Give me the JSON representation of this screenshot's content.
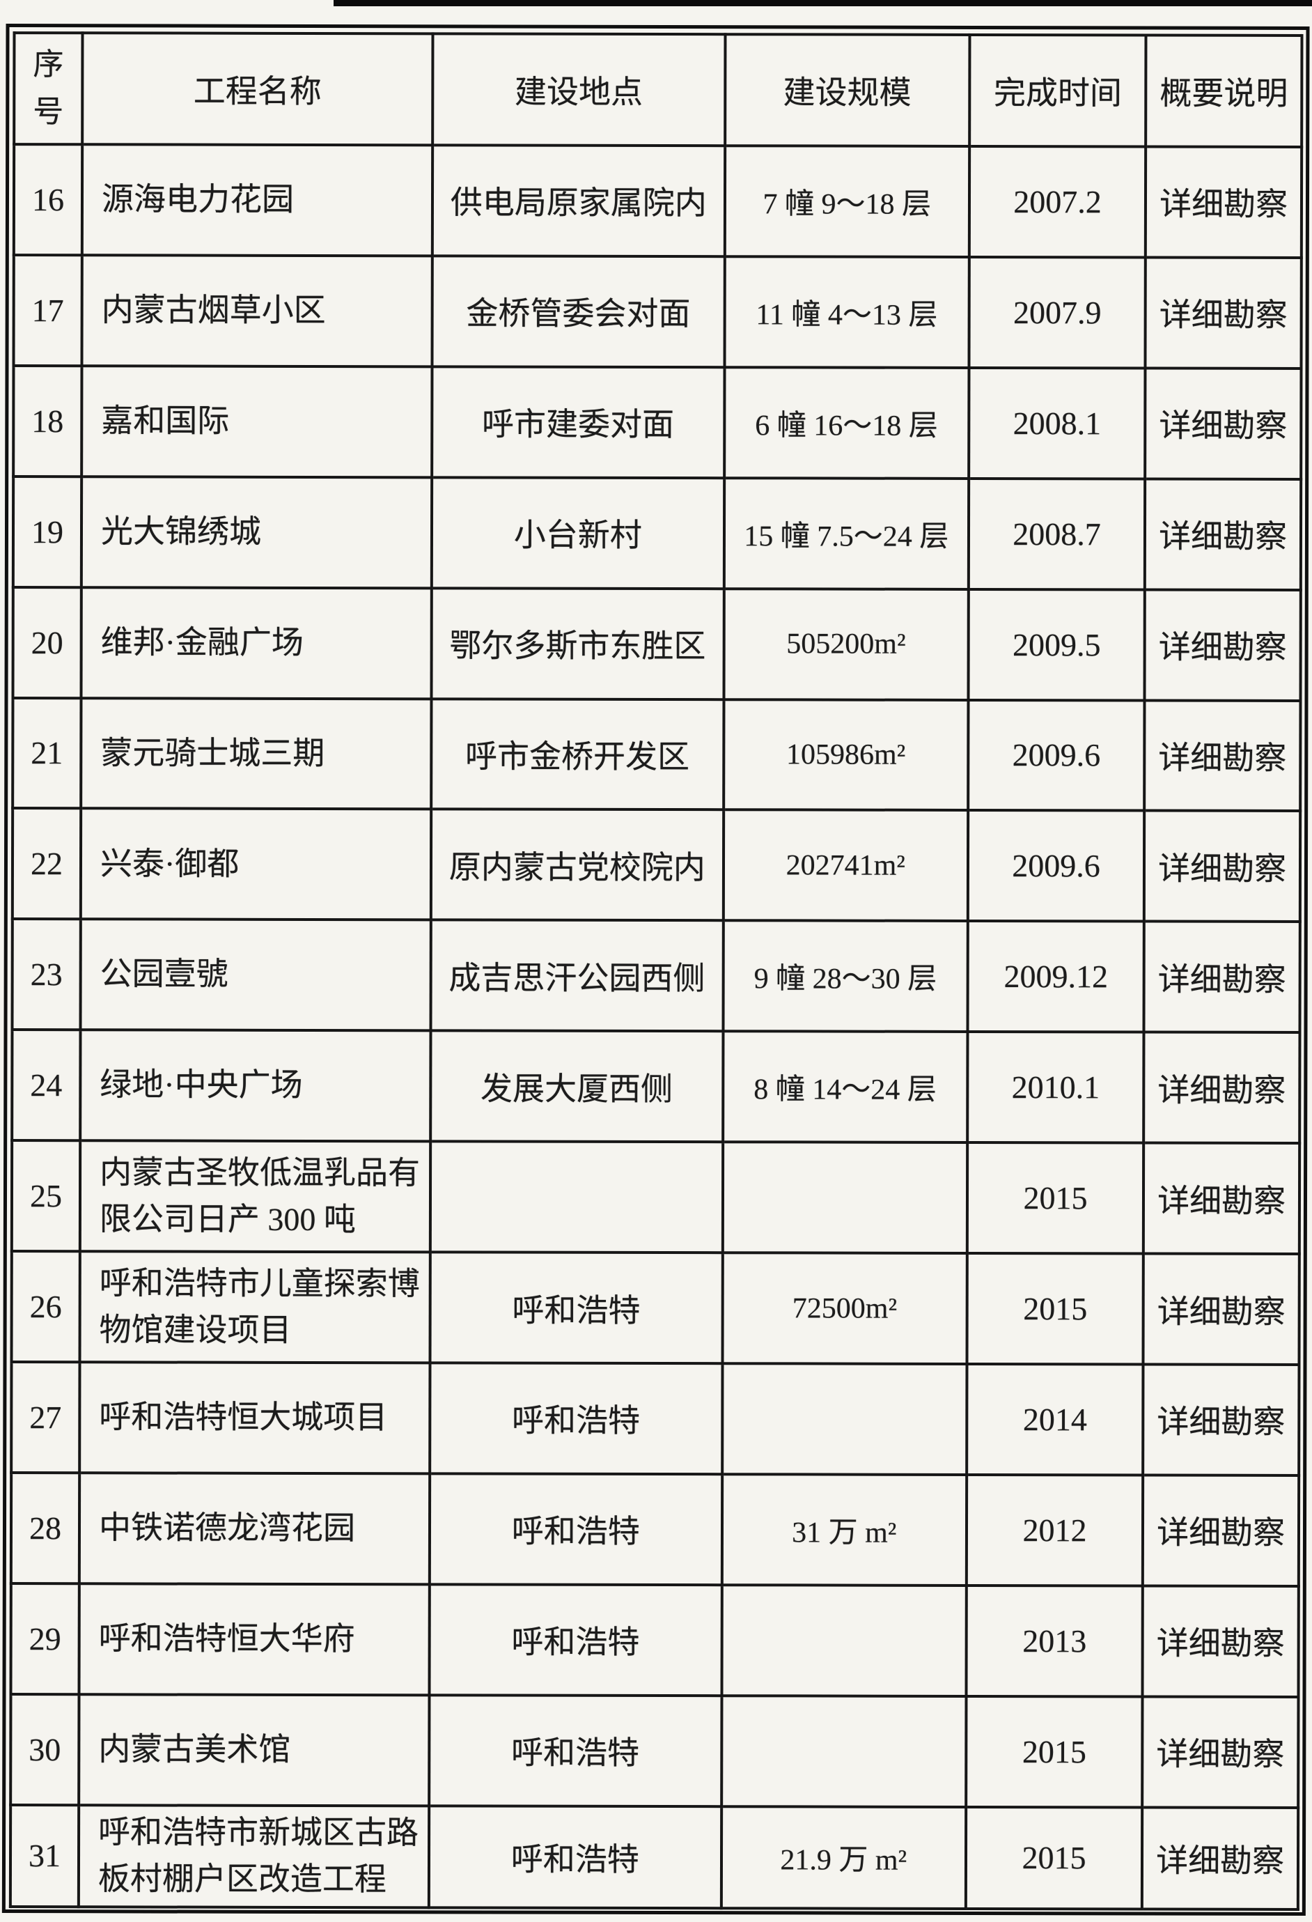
{
  "artifacts": {
    "top_scan_bar_color": "#0b0b0b",
    "paper_color": "#f5f4ef",
    "ink_color": "#1c1c1c"
  },
  "table": {
    "columns": [
      {
        "key": "no",
        "label": "序\n号"
      },
      {
        "key": "name",
        "label": "工程名称"
      },
      {
        "key": "location",
        "label": "建设地点"
      },
      {
        "key": "scale",
        "label": "建设规模"
      },
      {
        "key": "time",
        "label": "完成时间"
      },
      {
        "key": "note",
        "label": "概要说明"
      }
    ],
    "rows": [
      {
        "no": "16",
        "name": "源海电力花园",
        "location": "供电局原家属院内",
        "scale": "7 幢 9～18 层",
        "time": "2007.2",
        "note": "详细勘察"
      },
      {
        "no": "17",
        "name": "内蒙古烟草小区",
        "location": "金桥管委会对面",
        "scale": "11 幢 4～13 层",
        "time": "2007.9",
        "note": "详细勘察"
      },
      {
        "no": "18",
        "name": "嘉和国际",
        "location": "呼市建委对面",
        "scale": "6 幢 16～18 层",
        "time": "2008.1",
        "note": "详细勘察"
      },
      {
        "no": "19",
        "name": "光大锦绣城",
        "location": "小台新村",
        "scale": "15 幢 7.5～24 层",
        "time": "2008.7",
        "note": "详细勘察"
      },
      {
        "no": "20",
        "name": "维邦·金融广场",
        "location": "鄂尔多斯市东胜区",
        "scale": "505200m²",
        "time": "2009.5",
        "note": "详细勘察"
      },
      {
        "no": "21",
        "name": "蒙元骑士城三期",
        "location": "呼市金桥开发区",
        "scale": "105986m²",
        "time": "2009.6",
        "note": "详细勘察"
      },
      {
        "no": "22",
        "name": "兴泰·御都",
        "location": "原内蒙古党校院内",
        "scale": "202741m²",
        "time": "2009.6",
        "note": "详细勘察"
      },
      {
        "no": "23",
        "name": "公园壹號",
        "location": "成吉思汗公园西侧",
        "scale": "9 幢 28～30 层",
        "time": "2009.12",
        "note": "详细勘察"
      },
      {
        "no": "24",
        "name": "绿地·中央广场",
        "location": "发展大厦西侧",
        "scale": "8 幢 14～24 层",
        "time": "2010.1",
        "note": "详细勘察"
      },
      {
        "no": "25",
        "name": "内蒙古圣牧低温乳品有限公司日产 300 吨",
        "location": "",
        "scale": "",
        "time": "2015",
        "note": "详细勘察"
      },
      {
        "no": "26",
        "name": "呼和浩特市儿童探索博物馆建设项目",
        "location": "呼和浩特",
        "scale": "72500m²",
        "time": "2015",
        "note": "详细勘察"
      },
      {
        "no": "27",
        "name": "呼和浩特恒大城项目",
        "location": "呼和浩特",
        "scale": "",
        "time": "2014",
        "note": "详细勘察"
      },
      {
        "no": "28",
        "name": "中铁诺德龙湾花园",
        "location": "呼和浩特",
        "scale": "31 万 m²",
        "time": "2012",
        "note": "详细勘察"
      },
      {
        "no": "29",
        "name": "呼和浩特恒大华府",
        "location": "呼和浩特",
        "scale": "",
        "time": "2013",
        "note": "详细勘察"
      },
      {
        "no": "30",
        "name": "内蒙古美术馆",
        "location": "呼和浩特",
        "scale": "",
        "time": "2015",
        "note": "详细勘察"
      },
      {
        "no": "31",
        "name": "呼和浩特市新城区古路板村棚户区改造工程",
        "location": "呼和浩特",
        "scale": "21.9 万 m²",
        "time": "2015",
        "note": "详细勘察"
      }
    ]
  }
}
